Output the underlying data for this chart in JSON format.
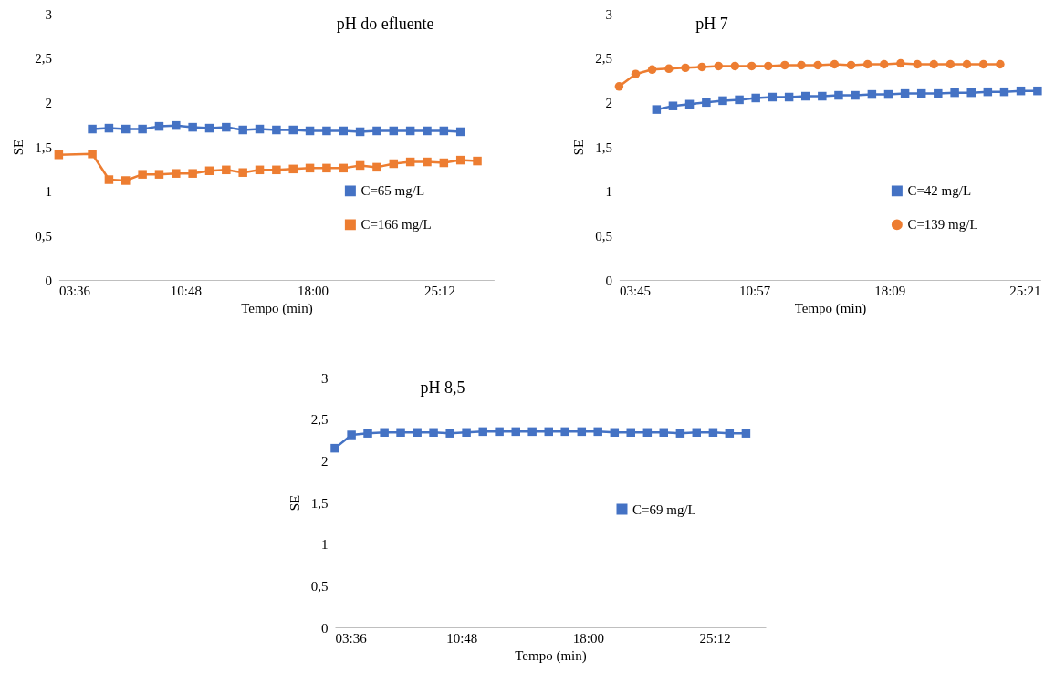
{
  "chart_data": [
    {
      "type": "line",
      "title": "pH do efluente",
      "xlabel": "Tempo (min)",
      "ylabel": "SE",
      "legend": "bottom right",
      "line_style": "solid",
      "grid": false,
      "xlim": [
        3.6,
        28.3
      ],
      "xticks": [
        {
          "value": 3.6,
          "label": "03:36"
        },
        {
          "value": 10.8,
          "label": "10:48"
        },
        {
          "value": 18,
          "label": "18:00"
        },
        {
          "value": 25.2,
          "label": "25:12"
        }
      ],
      "ylim": [
        0,
        3
      ],
      "yticks": [
        0,
        {
          "value": 0.5,
          "label": "0,5"
        },
        1,
        {
          "value": 1.5,
          "label": "1,5"
        },
        2,
        {
          "value": 2.5,
          "label": "2,5"
        },
        3
      ],
      "series": [
        {
          "name": "C=65 mg/L",
          "color": "#4472c4",
          "marker": "square",
          "x": [
            5.5,
            6.45,
            7.4,
            8.35,
            9.3,
            10.25,
            11.2,
            12.15,
            13.1,
            14.05,
            15,
            15.95,
            16.9,
            17.85,
            18.8,
            19.75,
            20.7,
            21.65,
            22.6,
            23.55,
            24.5,
            25.45,
            26.4
          ],
          "values": [
            1.7,
            1.71,
            1.7,
            1.7,
            1.73,
            1.74,
            1.72,
            1.71,
            1.72,
            1.69,
            1.7,
            1.69,
            1.69,
            1.68,
            1.68,
            1.68,
            1.67,
            1.68,
            1.68,
            1.68,
            1.68,
            1.68,
            1.67
          ]
        },
        {
          "name": "C=166 mg/L",
          "color": "#ed7d31",
          "marker": "square",
          "x": [
            3.6,
            5.5,
            6.45,
            7.4,
            8.35,
            9.3,
            10.25,
            11.2,
            12.15,
            13.1,
            14.05,
            15,
            15.95,
            16.9,
            17.85,
            18.8,
            19.75,
            20.7,
            21.65,
            22.6,
            23.55,
            24.5,
            25.45,
            26.4,
            27.35
          ],
          "values": [
            1.41,
            1.42,
            1.13,
            1.12,
            1.19,
            1.19,
            1.2,
            1.2,
            1.23,
            1.24,
            1.21,
            1.24,
            1.24,
            1.25,
            1.26,
            1.26,
            1.26,
            1.29,
            1.27,
            1.31,
            1.33,
            1.33,
            1.32,
            1.35,
            1.34
          ]
        }
      ]
    },
    {
      "type": "line",
      "title": "pH 7",
      "xlabel": "Tempo (min)",
      "ylabel": "SE",
      "legend": "bottom right",
      "line_style": "solid",
      "grid": false,
      "xlim": [
        3.75,
        26.2
      ],
      "xticks": [
        {
          "value": 3.75,
          "label": "03:45"
        },
        {
          "value": 10.95,
          "label": "10:57"
        },
        {
          "value": 18.15,
          "label": "18:09"
        },
        {
          "value": 25.35,
          "label": "25:21"
        }
      ],
      "ylim": [
        0,
        3
      ],
      "yticks": [
        0,
        {
          "value": 0.5,
          "label": "0,5"
        },
        1,
        {
          "value": 1.5,
          "label": "1,5"
        },
        2,
        {
          "value": 2.5,
          "label": "2,5"
        },
        3
      ],
      "series": [
        {
          "name": "C=42 mg/L",
          "color": "#4472c4",
          "marker": "square",
          "x": [
            5.74,
            6.62,
            7.5,
            8.39,
            9.27,
            10.15,
            11.03,
            11.91,
            12.8,
            13.68,
            14.56,
            15.44,
            16.32,
            17.21,
            18.09,
            18.97,
            19.85,
            20.73,
            21.62,
            22.5,
            23.38,
            24.26,
            25.14,
            26.03
          ],
          "values": [
            1.92,
            1.96,
            1.98,
            2.0,
            2.02,
            2.03,
            2.05,
            2.06,
            2.06,
            2.07,
            2.07,
            2.08,
            2.08,
            2.09,
            2.09,
            2.1,
            2.1,
            2.1,
            2.11,
            2.11,
            2.12,
            2.12,
            2.13,
            2.13
          ]
        },
        {
          "name": "C=139 mg/L",
          "color": "#ed7d31",
          "marker": "circle",
          "x": [
            3.75,
            4.63,
            5.51,
            6.4,
            7.28,
            8.16,
            9.04,
            9.92,
            10.81,
            11.69,
            12.57,
            13.45,
            14.33,
            15.22,
            16.1,
            16.98,
            17.86,
            18.74,
            19.63,
            20.51,
            21.39,
            22.27,
            23.15,
            24.04
          ],
          "values": [
            2.18,
            2.32,
            2.37,
            2.38,
            2.39,
            2.4,
            2.41,
            2.41,
            2.41,
            2.41,
            2.42,
            2.42,
            2.42,
            2.43,
            2.42,
            2.43,
            2.43,
            2.44,
            2.43,
            2.43,
            2.43,
            2.43,
            2.43,
            2.43
          ]
        }
      ]
    },
    {
      "type": "line",
      "title": "pH 8,5",
      "xlabel": "Tempo (min)",
      "ylabel": "SE",
      "legend": "right",
      "line_style": "solid",
      "grid": false,
      "xlim": [
        3.6,
        28.1
      ],
      "xticks": [
        {
          "value": 3.6,
          "label": "03:36"
        },
        {
          "value": 10.8,
          "label": "10:48"
        },
        {
          "value": 18,
          "label": "18:00"
        },
        {
          "value": 25.2,
          "label": "25:12"
        }
      ],
      "ylim": [
        0,
        3
      ],
      "yticks": [
        0,
        {
          "value": 0.5,
          "label": "0,5"
        },
        1,
        {
          "value": 1.5,
          "label": "1,5"
        },
        2,
        {
          "value": 2.5,
          "label": "2,5"
        },
        3
      ],
      "series": [
        {
          "name": "C=69 mg/L",
          "color": "#4472c4",
          "marker": "square",
          "x": [
            3.6,
            4.54,
            5.47,
            6.41,
            7.34,
            8.28,
            9.21,
            10.15,
            11.08,
            12.02,
            12.95,
            13.89,
            14.82,
            15.76,
            16.69,
            17.63,
            18.56,
            19.5,
            20.43,
            21.37,
            22.3,
            23.24,
            24.17,
            25.11,
            26.04,
            26.98
          ],
          "values": [
            2.15,
            2.31,
            2.33,
            2.34,
            2.34,
            2.34,
            2.34,
            2.33,
            2.34,
            2.35,
            2.35,
            2.35,
            2.35,
            2.35,
            2.35,
            2.35,
            2.35,
            2.34,
            2.34,
            2.34,
            2.34,
            2.33,
            2.34,
            2.34,
            2.33,
            2.33
          ]
        }
      ]
    }
  ]
}
